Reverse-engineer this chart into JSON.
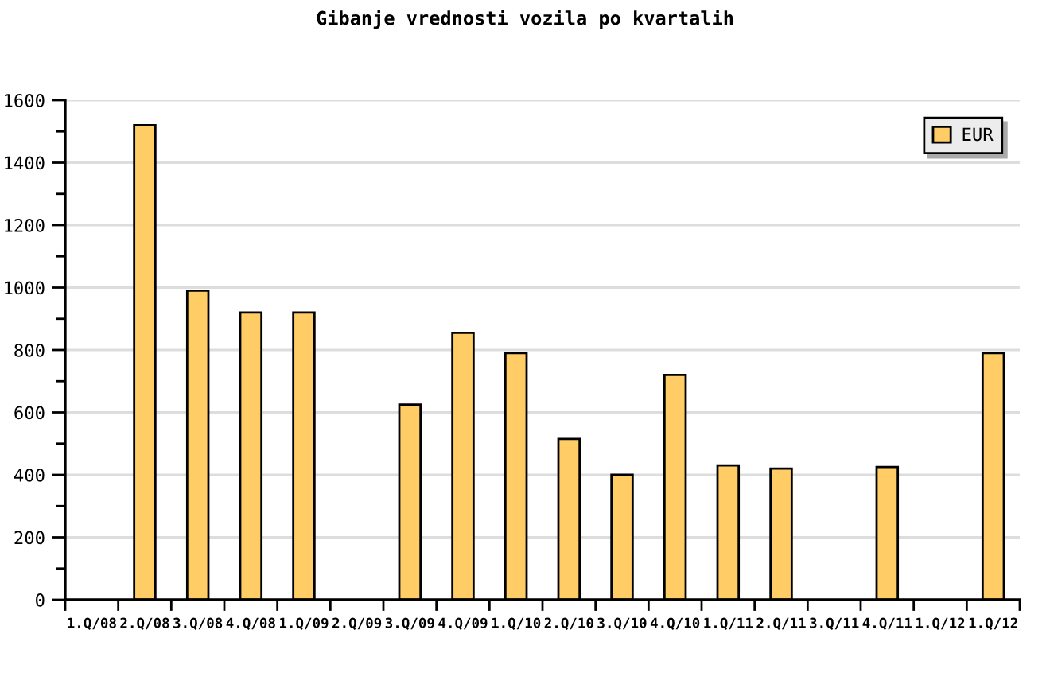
{
  "chart_data": {
    "type": "bar",
    "title": "Gibanje vrednosti vozila po kvartalih",
    "categories": [
      "1.Q/08",
      "2.Q/08",
      "3.Q/08",
      "4.Q/08",
      "1.Q/09",
      "2.Q/09",
      "3.Q/09",
      "4.Q/09",
      "1.Q/10",
      "2.Q/10",
      "3.Q/10",
      "4.Q/10",
      "1.Q/11",
      "2.Q/11",
      "3.Q/11",
      "4.Q/11",
      "1.Q/12",
      "1.Q/12"
    ],
    "series": [
      {
        "name": "EUR",
        "color": "#ffcc66",
        "values": [
          null,
          1520,
          990,
          920,
          920,
          null,
          625,
          855,
          790,
          515,
          400,
          720,
          430,
          420,
          null,
          425,
          null,
          790
        ]
      }
    ],
    "ylim": [
      0,
      1600
    ],
    "yticks": [
      0,
      200,
      400,
      600,
      800,
      1000,
      1200,
      1400,
      1600
    ],
    "grid": "y",
    "legend": "top right"
  }
}
